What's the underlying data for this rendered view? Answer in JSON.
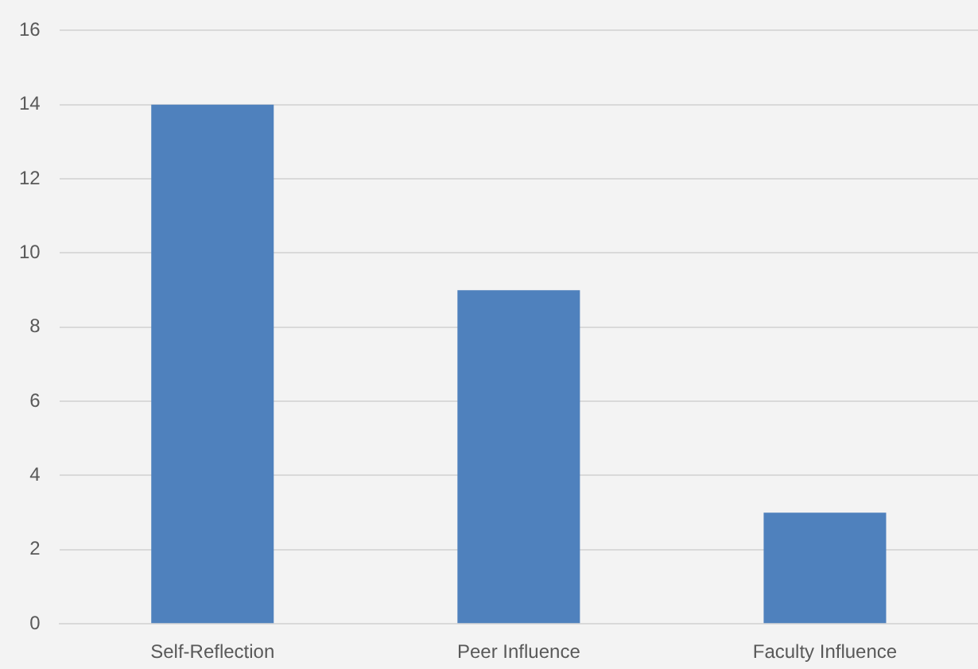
{
  "chart_data": {
    "type": "bar",
    "categories": [
      "Self-Reflection",
      "Peer Influence",
      "Faculty Influence"
    ],
    "values": [
      14,
      9,
      3
    ],
    "color": "#4f81bd",
    "ylim": [
      0,
      16
    ],
    "yticks": [
      0,
      2,
      4,
      6,
      8,
      10,
      12,
      14,
      16
    ],
    "grid": "y"
  }
}
